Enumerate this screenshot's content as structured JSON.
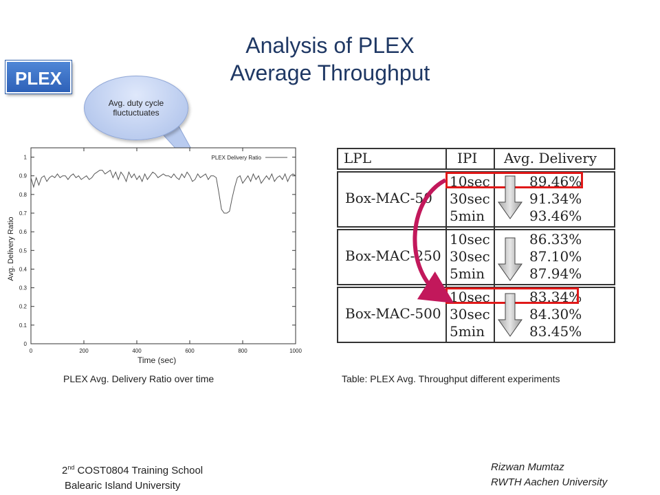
{
  "title": {
    "line1": "Analysis of PLEX",
    "line2": "Average Throughput"
  },
  "badge": "PLEX",
  "callout": "Avg. duty cycle fluctuctuates",
  "chart_data": {
    "type": "line",
    "legend": "PLEX Delivery Ratio",
    "xlabel": "Time (sec)",
    "ylabel": "Avg. Delivery Ratio",
    "xlim": [
      0,
      1000
    ],
    "ylim": [
      0,
      1.05
    ],
    "xticks": [
      0,
      200,
      400,
      600,
      800,
      1000
    ],
    "yticks": [
      0,
      0.1,
      0.2,
      0.3,
      0.4,
      0.5,
      0.6,
      0.7,
      0.8,
      0.9,
      1
    ],
    "series": [
      {
        "name": "PLEX Delivery Ratio",
        "x": [
          0,
          10,
          20,
          30,
          40,
          50,
          60,
          70,
          80,
          90,
          100,
          110,
          120,
          130,
          140,
          150,
          160,
          170,
          180,
          190,
          200,
          210,
          220,
          230,
          240,
          250,
          260,
          270,
          280,
          290,
          300,
          310,
          320,
          330,
          340,
          350,
          360,
          370,
          380,
          390,
          400,
          410,
          420,
          430,
          440,
          450,
          460,
          470,
          480,
          490,
          500,
          510,
          520,
          530,
          540,
          550,
          560,
          570,
          580,
          590,
          600,
          610,
          620,
          630,
          640,
          650,
          660,
          670,
          680,
          690,
          700,
          710,
          720,
          730,
          740,
          750,
          760,
          770,
          780,
          790,
          800,
          810,
          820,
          830,
          840,
          850,
          860,
          870,
          880,
          890,
          900,
          910,
          920,
          930,
          940,
          950,
          960,
          970,
          980,
          990,
          1000
        ],
        "y": [
          0.89,
          0.84,
          0.89,
          0.85,
          0.89,
          0.9,
          0.87,
          0.89,
          0.9,
          0.89,
          0.91,
          0.89,
          0.9,
          0.9,
          0.88,
          0.9,
          0.91,
          0.89,
          0.9,
          0.88,
          0.89,
          0.9,
          0.88,
          0.89,
          0.91,
          0.92,
          0.93,
          0.93,
          0.91,
          0.92,
          0.93,
          0.89,
          0.92,
          0.88,
          0.92,
          0.9,
          0.87,
          0.92,
          0.89,
          0.91,
          0.88,
          0.9,
          0.87,
          0.91,
          0.88,
          0.9,
          0.92,
          0.91,
          0.89,
          0.9,
          0.91,
          0.9,
          0.9,
          0.89,
          0.91,
          0.89,
          0.88,
          0.91,
          0.89,
          0.92,
          0.9,
          0.87,
          0.88,
          0.91,
          0.89,
          0.9,
          0.91,
          0.88,
          0.9,
          0.9,
          0.89,
          0.81,
          0.72,
          0.7,
          0.7,
          0.71,
          0.78,
          0.84,
          0.89,
          0.9,
          0.86,
          0.88,
          0.9,
          0.87,
          0.91,
          0.88,
          0.9,
          0.86,
          0.88,
          0.9,
          0.88,
          0.91,
          0.87,
          0.89,
          0.9,
          0.88,
          0.91,
          0.87,
          0.9,
          0.91,
          0.9
        ]
      }
    ]
  },
  "chart_caption": "PLEX Avg. Delivery Ratio over time",
  "table": {
    "headers": [
      "LPL",
      "IPI",
      "Avg. Delivery"
    ],
    "groups": [
      {
        "lpl": "Box-MAC-50",
        "rows": [
          [
            "10sec",
            "89.46%"
          ],
          [
            "30sec",
            "91.34%"
          ],
          [
            "5min",
            "93.46%"
          ]
        ]
      },
      {
        "lpl": "Box-MAC-250",
        "rows": [
          [
            "10sec",
            "86.33%"
          ],
          [
            "30sec",
            "87.10%"
          ],
          [
            "5min",
            "87.94%"
          ]
        ]
      },
      {
        "lpl": "Box-MAC-500",
        "rows": [
          [
            "10sec",
            "83.34%"
          ],
          [
            "30sec",
            "84.30%"
          ],
          [
            "5min",
            "83.45%"
          ]
        ]
      }
    ],
    "caption": "Table: PLEX Avg. Throughput different experiments"
  },
  "footer": {
    "left_prefix": "2",
    "left_sup": "nd",
    "left_line1_rest": " COST0804 Training School",
    "left_line2": "Balearic Island University",
    "right_line1": "Rizwan Mumtaz",
    "right_line2": "RWTH Aachen University"
  },
  "colors": {
    "title": "#1f3864",
    "badge": "#2e61b8",
    "highlight": "#e01818",
    "curved_arrow": "#c2185b"
  }
}
